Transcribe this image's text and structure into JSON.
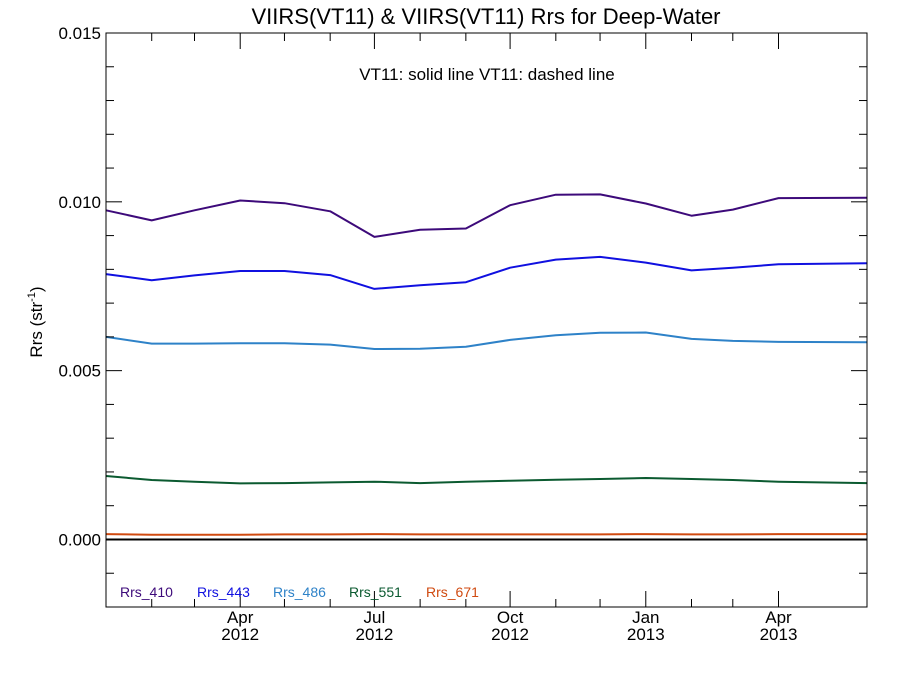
{
  "chart_data": {
    "type": "line",
    "title": "VIIRS(VT11) & VIIRS(VT11)  Rrs for Deep-Water",
    "annotation": "VT11: solid line   VT11: dashed line",
    "ylabel": "Rrs (str",
    "ylabel_sup": "-1",
    "ylabel_end": ")",
    "xlabel": "",
    "ylim": [
      -0.002,
      0.015
    ],
    "xlim": [
      "2012-01-01",
      "2013-05-31"
    ],
    "yticks": [
      {
        "value": 0.0,
        "label": "0.000"
      },
      {
        "value": 0.005,
        "label": "0.005"
      },
      {
        "value": 0.01,
        "label": "0.010"
      },
      {
        "value": 0.015,
        "label": "0.015"
      }
    ],
    "xticks": [
      {
        "date": "2012-04-01",
        "month": "Apr",
        "year": "2012"
      },
      {
        "date": "2012-07-01",
        "month": "Jul",
        "year": "2012"
      },
      {
        "date": "2012-10-01",
        "month": "Oct",
        "year": "2012"
      },
      {
        "date": "2013-01-01",
        "month": "Jan",
        "year": "2013"
      },
      {
        "date": "2013-04-01",
        "month": "Apr",
        "year": "2013"
      }
    ],
    "x": [
      "2012-01-01",
      "2012-02-01",
      "2012-03-01",
      "2012-04-01",
      "2012-05-01",
      "2012-06-01",
      "2012-07-01",
      "2012-08-01",
      "2012-09-01",
      "2012-10-01",
      "2012-11-01",
      "2012-12-01",
      "2013-01-01",
      "2013-02-01",
      "2013-03-01",
      "2013-04-01",
      "2013-05-31"
    ],
    "series": [
      {
        "name": "Rrs_410",
        "color": "#3d0a7a",
        "values": [
          0.00975,
          0.00945,
          0.00975,
          0.01004,
          0.00996,
          0.00972,
          0.00896,
          0.00917,
          0.00921,
          0.0099,
          0.01021,
          0.01022,
          0.00995,
          0.00959,
          0.00977,
          0.01011,
          0.01012
        ]
      },
      {
        "name": "Rrs_443",
        "color": "#1010e0",
        "values": [
          0.00786,
          0.00768,
          0.00782,
          0.00795,
          0.00795,
          0.00783,
          0.00742,
          0.00753,
          0.00762,
          0.00805,
          0.00829,
          0.00837,
          0.0082,
          0.00797,
          0.00805,
          0.00815,
          0.00818
        ]
      },
      {
        "name": "Rrs_486",
        "color": "#2e82c8",
        "values": [
          0.006,
          0.0058,
          0.0058,
          0.00581,
          0.00581,
          0.00577,
          0.00564,
          0.00565,
          0.00571,
          0.00591,
          0.00605,
          0.00612,
          0.00613,
          0.00594,
          0.00588,
          0.00585,
          0.00584
        ]
      },
      {
        "name": "Rrs_551",
        "color": "#0b5a30",
        "values": [
          0.00188,
          0.00176,
          0.00171,
          0.00166,
          0.00167,
          0.00169,
          0.00171,
          0.00167,
          0.00171,
          0.00174,
          0.00177,
          0.00179,
          0.00182,
          0.00179,
          0.00176,
          0.00171,
          0.00167
        ]
      },
      {
        "name": "Rrs_671",
        "color": "#d04a10",
        "values": [
          0.00016,
          0.00014,
          0.00014,
          0.00014,
          0.00015,
          0.00015,
          0.00016,
          0.00015,
          0.00015,
          0.00015,
          0.00015,
          0.00015,
          0.00016,
          0.00015,
          0.00015,
          0.00016,
          0.00016
        ]
      }
    ],
    "zero_line": {
      "value": 0.0,
      "color": "#000000"
    },
    "legend_position": "bottom-left",
    "grid": false
  }
}
